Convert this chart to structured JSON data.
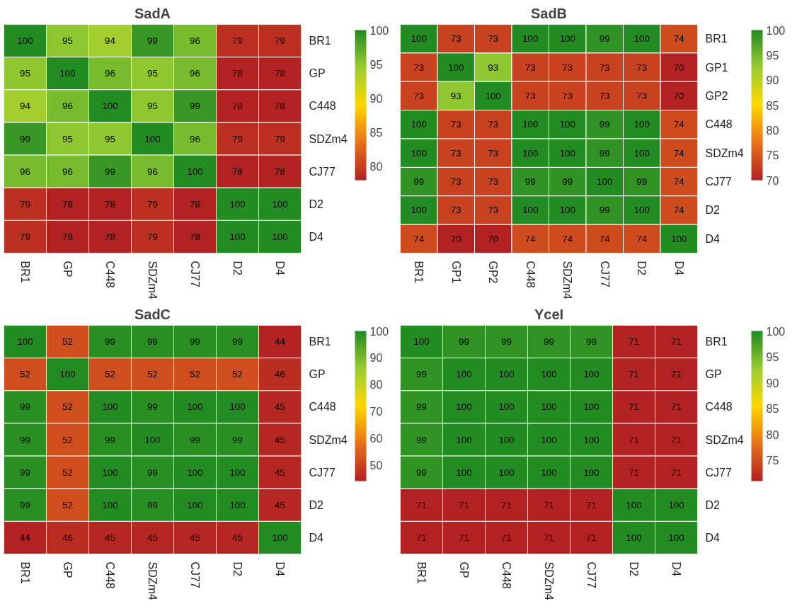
{
  "chart_data": [
    {
      "type": "heatmap",
      "title": "SadA",
      "categories": [
        "BR1",
        "GP",
        "C448",
        "SDZm4",
        "CJ77",
        "D2",
        "D4"
      ],
      "y_categories": [
        "BR1",
        "GP",
        "C448",
        "SDZm4",
        "CJ77",
        "D2",
        "D4"
      ],
      "cells": [
        [
          100,
          95,
          94,
          99,
          96,
          79,
          79
        ],
        [
          95,
          100,
          96,
          95,
          96,
          78,
          78
        ],
        [
          94,
          96,
          100,
          95,
          99,
          78,
          78
        ],
        [
          99,
          95,
          95,
          100,
          96,
          79,
          79
        ],
        [
          96,
          96,
          99,
          96,
          100,
          78,
          78
        ],
        [
          79,
          78,
          78,
          79,
          78,
          100,
          100
        ],
        [
          79,
          78,
          78,
          79,
          78,
          100,
          100
        ]
      ],
      "clim": [
        78,
        100
      ],
      "cticks": [
        80,
        85,
        90,
        95,
        100
      ],
      "data_labels": true
    },
    {
      "type": "heatmap",
      "title": "SadB",
      "categories": [
        "BR1",
        "GP1",
        "GP2",
        "C448",
        "SDZm4",
        "CJ77",
        "D2",
        "D4"
      ],
      "y_categories": [
        "BR1",
        "GP1",
        "GP2",
        "C448",
        "SDZm4",
        "CJ77",
        "D2",
        "D4"
      ],
      "cells": [
        [
          100,
          73,
          73,
          100,
          100,
          99,
          100,
          74
        ],
        [
          73,
          100,
          93,
          73,
          73,
          73,
          73,
          70
        ],
        [
          73,
          93,
          100,
          73,
          73,
          73,
          73,
          70
        ],
        [
          100,
          73,
          73,
          100,
          100,
          99,
          100,
          74
        ],
        [
          100,
          73,
          73,
          100,
          100,
          99,
          100,
          74
        ],
        [
          99,
          73,
          73,
          99,
          99,
          100,
          99,
          74
        ],
        [
          100,
          73,
          73,
          100,
          100,
          99,
          100,
          74
        ],
        [
          74,
          70,
          70,
          74,
          74,
          74,
          74,
          100
        ]
      ],
      "clim": [
        70,
        100
      ],
      "cticks": [
        70,
        75,
        80,
        85,
        90,
        95,
        100
      ],
      "data_labels": true
    },
    {
      "type": "heatmap",
      "title": "SadC",
      "categories": [
        "BR1",
        "GP",
        "C448",
        "SDZm4",
        "CJ77",
        "D2",
        "D4"
      ],
      "y_categories": [
        "BR1",
        "GP",
        "C448",
        "SDZm4",
        "CJ77",
        "D2",
        "D4"
      ],
      "cells": [
        [
          100,
          52,
          99,
          99,
          99,
          99,
          44
        ],
        [
          52,
          100,
          52,
          52,
          52,
          52,
          46
        ],
        [
          99,
          52,
          100,
          99,
          100,
          100,
          45
        ],
        [
          99,
          52,
          99,
          100,
          99,
          99,
          45
        ],
        [
          99,
          52,
          100,
          99,
          100,
          100,
          45
        ],
        [
          99,
          52,
          100,
          99,
          100,
          100,
          45
        ],
        [
          44,
          46,
          45,
          45,
          45,
          45,
          100
        ]
      ],
      "clim": [
        44,
        100
      ],
      "cticks": [
        50,
        60,
        70,
        80,
        90,
        100
      ],
      "data_labels": true
    },
    {
      "type": "heatmap",
      "title": "YceI",
      "categories": [
        "BR1",
        "GP",
        "C448",
        "SDZm4",
        "CJ77",
        "D2",
        "D4"
      ],
      "y_categories": [
        "BR1",
        "GP",
        "C448",
        "SDZm4",
        "CJ77",
        "D2",
        "D4"
      ],
      "cells": [
        [
          100,
          99,
          99,
          99,
          99,
          71,
          71
        ],
        [
          99,
          100,
          100,
          100,
          100,
          71,
          71
        ],
        [
          99,
          100,
          100,
          100,
          100,
          71,
          71
        ],
        [
          99,
          100,
          100,
          100,
          100,
          71,
          71
        ],
        [
          99,
          100,
          100,
          100,
          100,
          71,
          71
        ],
        [
          71,
          71,
          71,
          71,
          71,
          100,
          100
        ],
        [
          71,
          71,
          71,
          71,
          71,
          100,
          100
        ]
      ],
      "clim": [
        71,
        100
      ],
      "cticks": [
        75,
        80,
        85,
        90,
        95,
        100
      ],
      "data_labels": true
    }
  ]
}
